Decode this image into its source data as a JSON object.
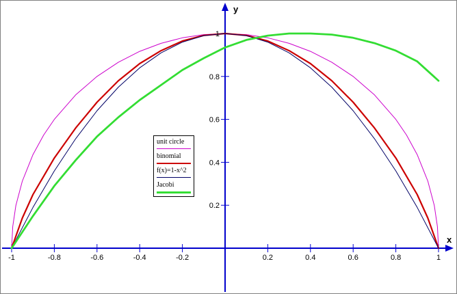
{
  "chart_data": {
    "type": "line",
    "xlabel": "x",
    "ylabel": "y",
    "xlim": [
      -1,
      1
    ],
    "ylim": [
      -0.2,
      1.08
    ],
    "x_ticks": [
      "-1",
      "-0.8",
      "-0.6",
      "-0.4",
      "-0.2",
      "0.2",
      "0.4",
      "0.6",
      "0.8",
      "1"
    ],
    "y_ticks": [
      "0.2",
      "0.4",
      "0.6",
      "0.8",
      "1"
    ],
    "grid": false,
    "legend_position": "center-left",
    "series": [
      {
        "name": "unit circle",
        "color": "#cc00cc",
        "x": [
          -1,
          -0.995,
          -0.98,
          -0.95,
          -0.9,
          -0.85,
          -0.8,
          -0.7,
          -0.6,
          -0.5,
          -0.4,
          -0.3,
          -0.2,
          -0.1,
          0,
          0.1,
          0.2,
          0.3,
          0.4,
          0.5,
          0.6,
          0.7,
          0.8,
          0.85,
          0.9,
          0.95,
          0.98,
          0.995,
          1
        ],
        "y": [
          0,
          0.1,
          0.199,
          0.312,
          0.436,
          0.527,
          0.6,
          0.714,
          0.8,
          0.866,
          0.917,
          0.954,
          0.98,
          0.995,
          1,
          0.995,
          0.98,
          0.954,
          0.917,
          0.866,
          0.8,
          0.714,
          0.6,
          0.527,
          0.436,
          0.312,
          0.199,
          0.1,
          0
        ]
      },
      {
        "name": "binomial",
        "color": "#cc0000",
        "x": [
          -1,
          -0.95,
          -0.9,
          -0.8,
          -0.7,
          -0.6,
          -0.5,
          -0.4,
          -0.3,
          -0.2,
          -0.1,
          0,
          0.1,
          0.2,
          0.3,
          0.4,
          0.5,
          0.6,
          0.7,
          0.8,
          0.9,
          0.95,
          1
        ],
        "y": [
          0,
          0.14,
          0.25,
          0.42,
          0.56,
          0.68,
          0.78,
          0.86,
          0.92,
          0.965,
          0.991,
          1,
          0.991,
          0.965,
          0.92,
          0.86,
          0.78,
          0.68,
          0.56,
          0.42,
          0.25,
          0.14,
          0
        ]
      },
      {
        "name": "f(x)=1-x^2",
        "color": "#000066",
        "x": [
          -1,
          -0.9,
          -0.8,
          -0.7,
          -0.6,
          -0.5,
          -0.4,
          -0.3,
          -0.2,
          -0.1,
          0,
          0.1,
          0.2,
          0.3,
          0.4,
          0.5,
          0.6,
          0.7,
          0.8,
          0.9,
          1
        ],
        "y": [
          0,
          0.19,
          0.36,
          0.51,
          0.64,
          0.75,
          0.84,
          0.91,
          0.96,
          0.99,
          1,
          0.99,
          0.96,
          0.91,
          0.84,
          0.75,
          0.64,
          0.51,
          0.36,
          0.19,
          0
        ]
      },
      {
        "name": "Jacobi",
        "color": "#33dd33",
        "x": [
          -1,
          -0.9,
          -0.8,
          -0.7,
          -0.6,
          -0.5,
          -0.4,
          -0.3,
          -0.2,
          -0.1,
          0,
          0.1,
          0.2,
          0.3,
          0.4,
          0.5,
          0.6,
          0.7,
          0.8,
          0.9,
          1
        ],
        "y": [
          0,
          0.15,
          0.29,
          0.41,
          0.52,
          0.61,
          0.69,
          0.76,
          0.83,
          0.885,
          0.935,
          0.97,
          0.99,
          1,
          1,
          0.995,
          0.98,
          0.955,
          0.92,
          0.87,
          0.78
        ]
      }
    ]
  }
}
